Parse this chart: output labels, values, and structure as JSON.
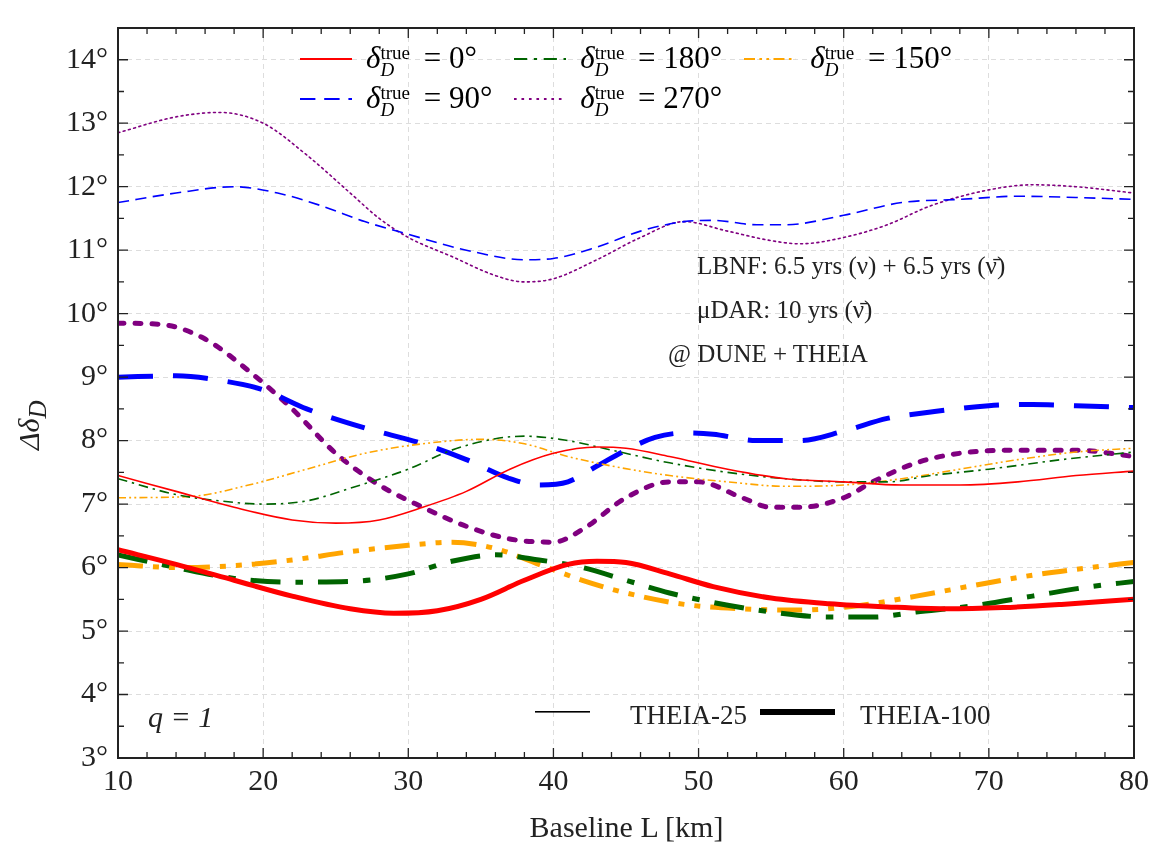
{
  "chart_data": {
    "type": "line",
    "xlabel": "Baseline L [km]",
    "ylabel": "Δδ$_{D}$",
    "xlim": [
      10,
      80
    ],
    "ylim": [
      3,
      14.5
    ],
    "xticks": [
      10,
      {
        "value": 12,
        "label": null
      },
      {
        "value": 14,
        "label": null
      },
      {
        "value": 16,
        "label": null
      },
      {
        "value": 18,
        "label": null
      },
      20,
      {
        "value": 22,
        "label": null
      },
      {
        "value": 24,
        "label": null
      },
      {
        "value": 26,
        "label": null
      },
      {
        "value": 28,
        "label": null
      },
      30,
      {
        "value": 32,
        "label": null
      },
      {
        "value": 34,
        "label": null
      },
      {
        "value": 36,
        "label": null
      },
      {
        "value": 38,
        "label": null
      },
      40,
      {
        "value": 42,
        "label": null
      },
      {
        "value": 44,
        "label": null
      },
      {
        "value": 46,
        "label": null
      },
      {
        "value": 48,
        "label": null
      },
      50,
      {
        "value": 52,
        "label": null
      },
      {
        "value": 54,
        "label": null
      },
      {
        "value": 56,
        "label": null
      },
      {
        "value": 58,
        "label": null
      },
      60,
      {
        "value": 62,
        "label": null
      },
      {
        "value": 64,
        "label": null
      },
      {
        "value": 66,
        "label": null
      },
      {
        "value": 68,
        "label": null
      },
      70,
      {
        "value": 72,
        "label": null
      },
      {
        "value": 74,
        "label": null
      },
      {
        "value": 76,
        "label": null
      },
      {
        "value": 78,
        "label": null
      },
      80
    ],
    "yticks": [
      {
        "value": 3,
        "label": "3°"
      },
      {
        "value": 3.5,
        "label": null
      },
      {
        "value": 4,
        "label": "4°"
      },
      {
        "value": 4.5,
        "label": null
      },
      {
        "value": 5,
        "label": "5°"
      },
      {
        "value": 5.5,
        "label": null
      },
      {
        "value": 6,
        "label": "6°"
      },
      {
        "value": 6.5,
        "label": null
      },
      {
        "value": 7,
        "label": "7°"
      },
      {
        "value": 7.5,
        "label": null
      },
      {
        "value": 8,
        "label": "8°"
      },
      {
        "value": 8.5,
        "label": null
      },
      {
        "value": 9,
        "label": "9°"
      },
      {
        "value": 9.5,
        "label": null
      },
      {
        "value": 10,
        "label": "10°"
      },
      {
        "value": 10.5,
        "label": null
      },
      {
        "value": 11,
        "label": "11°"
      },
      {
        "value": 11.5,
        "label": null
      },
      {
        "value": 12,
        "label": "12°"
      },
      {
        "value": 12.5,
        "label": null
      },
      {
        "value": 13,
        "label": "13°"
      },
      {
        "value": 13.5,
        "label": null
      },
      {
        "value": 14,
        "label": "14°"
      }
    ],
    "grid": true,
    "legend": "top",
    "marker": "none",
    "annotations": [
      "LBNF: 6.5 yrs (ν) + 6.5 yrs (ν̄)",
      "μDAR: 10 yrs (ν̄)",
      "@ DUNE + THEIA",
      "q = 1",
      "THEIA-25",
      "THEIA-100"
    ],
    "series": [
      {
        "name": "δ$_{D}$$^{true}$ = 0°",
        "color": "#ff0000",
        "line_style": "solid",
        "x": [
          10,
          14,
          18,
          22,
          25,
          28,
          31,
          34,
          37,
          40,
          43,
          45,
          48,
          52,
          56,
          60,
          64,
          68,
          72,
          76,
          80
        ],
        "values": [
          7.45,
          7.2,
          6.95,
          6.75,
          6.7,
          6.75,
          6.95,
          7.2,
          7.55,
          7.8,
          7.9,
          7.88,
          7.75,
          7.55,
          7.4,
          7.35,
          7.3,
          7.3,
          7.35,
          7.45,
          7.52
        ]
      },
      {
        "name": "δ$_{D}$$^{true}$ = 90°",
        "color": "#0000ff",
        "line_style": "dashed",
        "x": [
          10,
          14,
          18,
          21,
          24,
          27,
          30,
          34,
          38,
          40,
          43,
          46,
          49,
          51,
          54,
          56,
          60,
          64,
          68,
          72,
          76,
          80
        ],
        "values": [
          11.75,
          11.9,
          12.0,
          11.9,
          11.7,
          11.45,
          11.25,
          11.0,
          10.85,
          10.87,
          11.05,
          11.3,
          11.45,
          11.47,
          11.4,
          11.4,
          11.55,
          11.75,
          11.8,
          11.85,
          11.83,
          11.8
        ]
      },
      {
        "name": "δ$_{D}$$^{true}$ = 180°",
        "color": "#006400",
        "line_style": "dashdot",
        "x": [
          10,
          14,
          17,
          20,
          23,
          26,
          30,
          33,
          36,
          38,
          41,
          44,
          48,
          52,
          56,
          60,
          63,
          66,
          70,
          75,
          80
        ],
        "values": [
          7.4,
          7.15,
          7.05,
          7.0,
          7.05,
          7.25,
          7.55,
          7.85,
          8.03,
          8.07,
          8.0,
          7.85,
          7.65,
          7.5,
          7.4,
          7.35,
          7.35,
          7.45,
          7.55,
          7.7,
          7.82
        ]
      },
      {
        "name": "δ$_{D}$$^{true}$ = 270°",
        "color": "#800080",
        "line_style": "dotted",
        "x": [
          10,
          14,
          17,
          20,
          23,
          26,
          28,
          30,
          33,
          36,
          38,
          40,
          43,
          46,
          49,
          52,
          55,
          57,
          60,
          63,
          66,
          70,
          73,
          76,
          80
        ],
        "values": [
          12.85,
          13.1,
          13.17,
          13.0,
          12.5,
          11.9,
          11.5,
          11.2,
          10.9,
          10.6,
          10.5,
          10.55,
          10.85,
          11.2,
          11.45,
          11.3,
          11.15,
          11.1,
          11.2,
          11.4,
          11.7,
          11.95,
          12.03,
          12.0,
          11.9
        ]
      },
      {
        "name": "δ$_{D}$$^{true}$ = 150°",
        "color": "#ffa500",
        "line_style": "dashdotdot",
        "x": [
          10,
          15,
          19,
          23,
          27,
          31,
          35,
          38,
          41,
          44,
          48,
          52,
          56,
          60,
          64,
          68,
          72,
          76,
          80
        ],
        "values": [
          7.1,
          7.12,
          7.3,
          7.55,
          7.8,
          7.95,
          8.02,
          7.95,
          7.75,
          7.6,
          7.45,
          7.35,
          7.28,
          7.3,
          7.4,
          7.55,
          7.7,
          7.82,
          7.88
        ]
      },
      {
        "color": "#ff0000",
        "line_style": "solid",
        "x": [
          10,
          14,
          18,
          22,
          26,
          29,
          32,
          35,
          38,
          41,
          43,
          45,
          48,
          51,
          55,
          59,
          63,
          67,
          71,
          75,
          80
        ],
        "values": [
          6.28,
          6.05,
          5.8,
          5.55,
          5.35,
          5.28,
          5.32,
          5.5,
          5.8,
          6.05,
          6.1,
          6.08,
          5.9,
          5.7,
          5.52,
          5.43,
          5.38,
          5.35,
          5.37,
          5.42,
          5.5
        ]
      },
      {
        "color": "#0000ff",
        "line_style": "dashed",
        "x": [
          10,
          14,
          17,
          20,
          23,
          27,
          31,
          34,
          37,
          39,
          41,
          43,
          45,
          47,
          49,
          51,
          54,
          57,
          60,
          63,
          66,
          70,
          73,
          76,
          80
        ],
        "values": [
          9.0,
          9.02,
          8.95,
          8.8,
          8.5,
          8.2,
          7.95,
          7.7,
          7.4,
          7.3,
          7.35,
          7.6,
          7.85,
          8.05,
          8.12,
          8.1,
          8.0,
          8.0,
          8.15,
          8.35,
          8.45,
          8.55,
          8.57,
          8.55,
          8.52
        ]
      },
      {
        "color": "#006400",
        "line_style": "dashdot",
        "x": [
          10,
          14,
          18,
          22,
          26,
          30,
          33,
          36,
          39,
          42,
          45,
          48,
          51,
          55,
          59,
          62,
          65,
          69,
          73,
          77,
          80
        ],
        "values": [
          6.2,
          6.0,
          5.83,
          5.77,
          5.78,
          5.9,
          6.1,
          6.2,
          6.12,
          6.0,
          5.8,
          5.6,
          5.45,
          5.3,
          5.22,
          5.22,
          5.3,
          5.4,
          5.55,
          5.7,
          5.78
        ]
      },
      {
        "color": "#800080",
        "line_style": "dotted",
        "x": [
          10,
          13,
          16,
          19,
          22,
          25,
          28,
          31,
          34,
          37,
          40,
          42,
          45,
          48,
          50,
          53,
          55,
          57,
          60,
          62,
          65,
          68,
          72,
          76,
          80
        ],
        "values": [
          9.85,
          9.83,
          9.6,
          9.1,
          8.5,
          7.8,
          7.3,
          6.95,
          6.65,
          6.45,
          6.4,
          6.6,
          7.1,
          7.35,
          7.35,
          7.1,
          6.95,
          6.95,
          7.1,
          7.35,
          7.65,
          7.8,
          7.85,
          7.85,
          7.75
        ]
      },
      {
        "color": "#ffa500",
        "line_style": "dashdotdot",
        "x": [
          10,
          14,
          18,
          22,
          26,
          30,
          33,
          36,
          39,
          42,
          45,
          49,
          53,
          57,
          61,
          65,
          69,
          73,
          77,
          80
        ],
        "values": [
          6.05,
          6.0,
          6.03,
          6.12,
          6.25,
          6.35,
          6.4,
          6.3,
          6.05,
          5.8,
          5.6,
          5.42,
          5.35,
          5.33,
          5.4,
          5.55,
          5.72,
          5.88,
          6.0,
          6.08
        ]
      }
    ]
  }
}
